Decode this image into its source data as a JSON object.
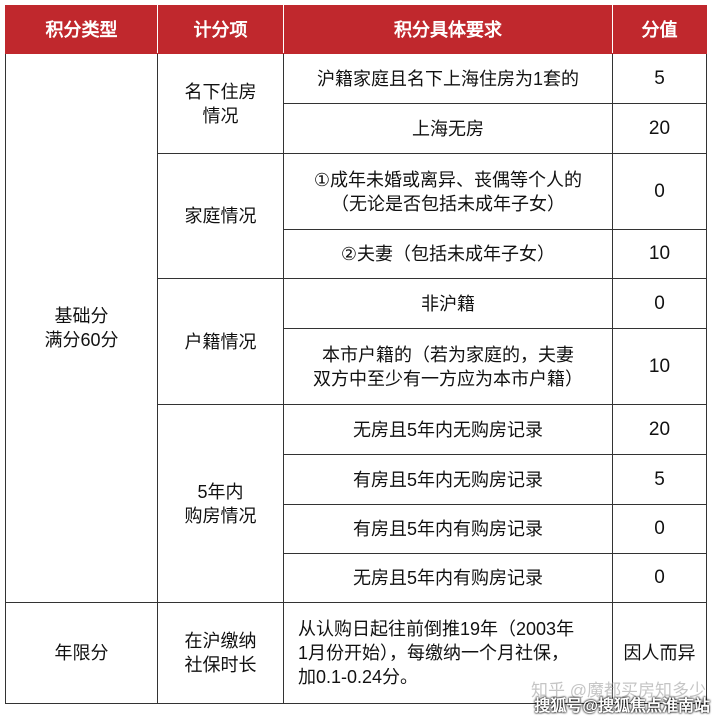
{
  "headers": [
    "积分类型",
    "计分项",
    "积分具体要求",
    "分值"
  ],
  "base": {
    "type": "基础分\n满分60分",
    "groups": [
      {
        "item": "名下住房\n情况",
        "rows": [
          {
            "req": "沪籍家庭且名下上海住房为1套的",
            "score": "5"
          },
          {
            "req": "上海无房",
            "score": "20"
          }
        ]
      },
      {
        "item": "家庭情况",
        "rows": [
          {
            "req": "①成年未婚或离异、丧偶等个人的\n（无论是否包括未成年子女）",
            "score": "0"
          },
          {
            "req": "②夫妻（包括未成年子女）",
            "score": "10"
          }
        ]
      },
      {
        "item": "户籍情况",
        "rows": [
          {
            "req": "非沪籍",
            "score": "0"
          },
          {
            "req": "本市户籍的（若为家庭的，夫妻\n双方中至少有一方应为本市户籍）",
            "score": "10"
          }
        ]
      },
      {
        "item": "5年内\n购房情况",
        "rows": [
          {
            "req": "无房且5年内无购房记录",
            "score": "20"
          },
          {
            "req": "有房且5年内无购房记录",
            "score": "5"
          },
          {
            "req": "有房且5年内有购房记录",
            "score": "0"
          },
          {
            "req": "无房且5年内有购房记录",
            "score": "0"
          }
        ]
      }
    ]
  },
  "years": {
    "type": "年限分",
    "item": "在沪缴纳\n社保时长",
    "req": "从认购日起往前倒推19年（2003年\n1月份开始），每缴纳一个月社保，\n加0.1-0.24分。",
    "score": "因人而异"
  },
  "watermarks": [
    "知乎 @魔都买房知多少",
    "搜狐号@搜狐焦点淮南站"
  ],
  "colors": {
    "header": "#c0282d"
  }
}
